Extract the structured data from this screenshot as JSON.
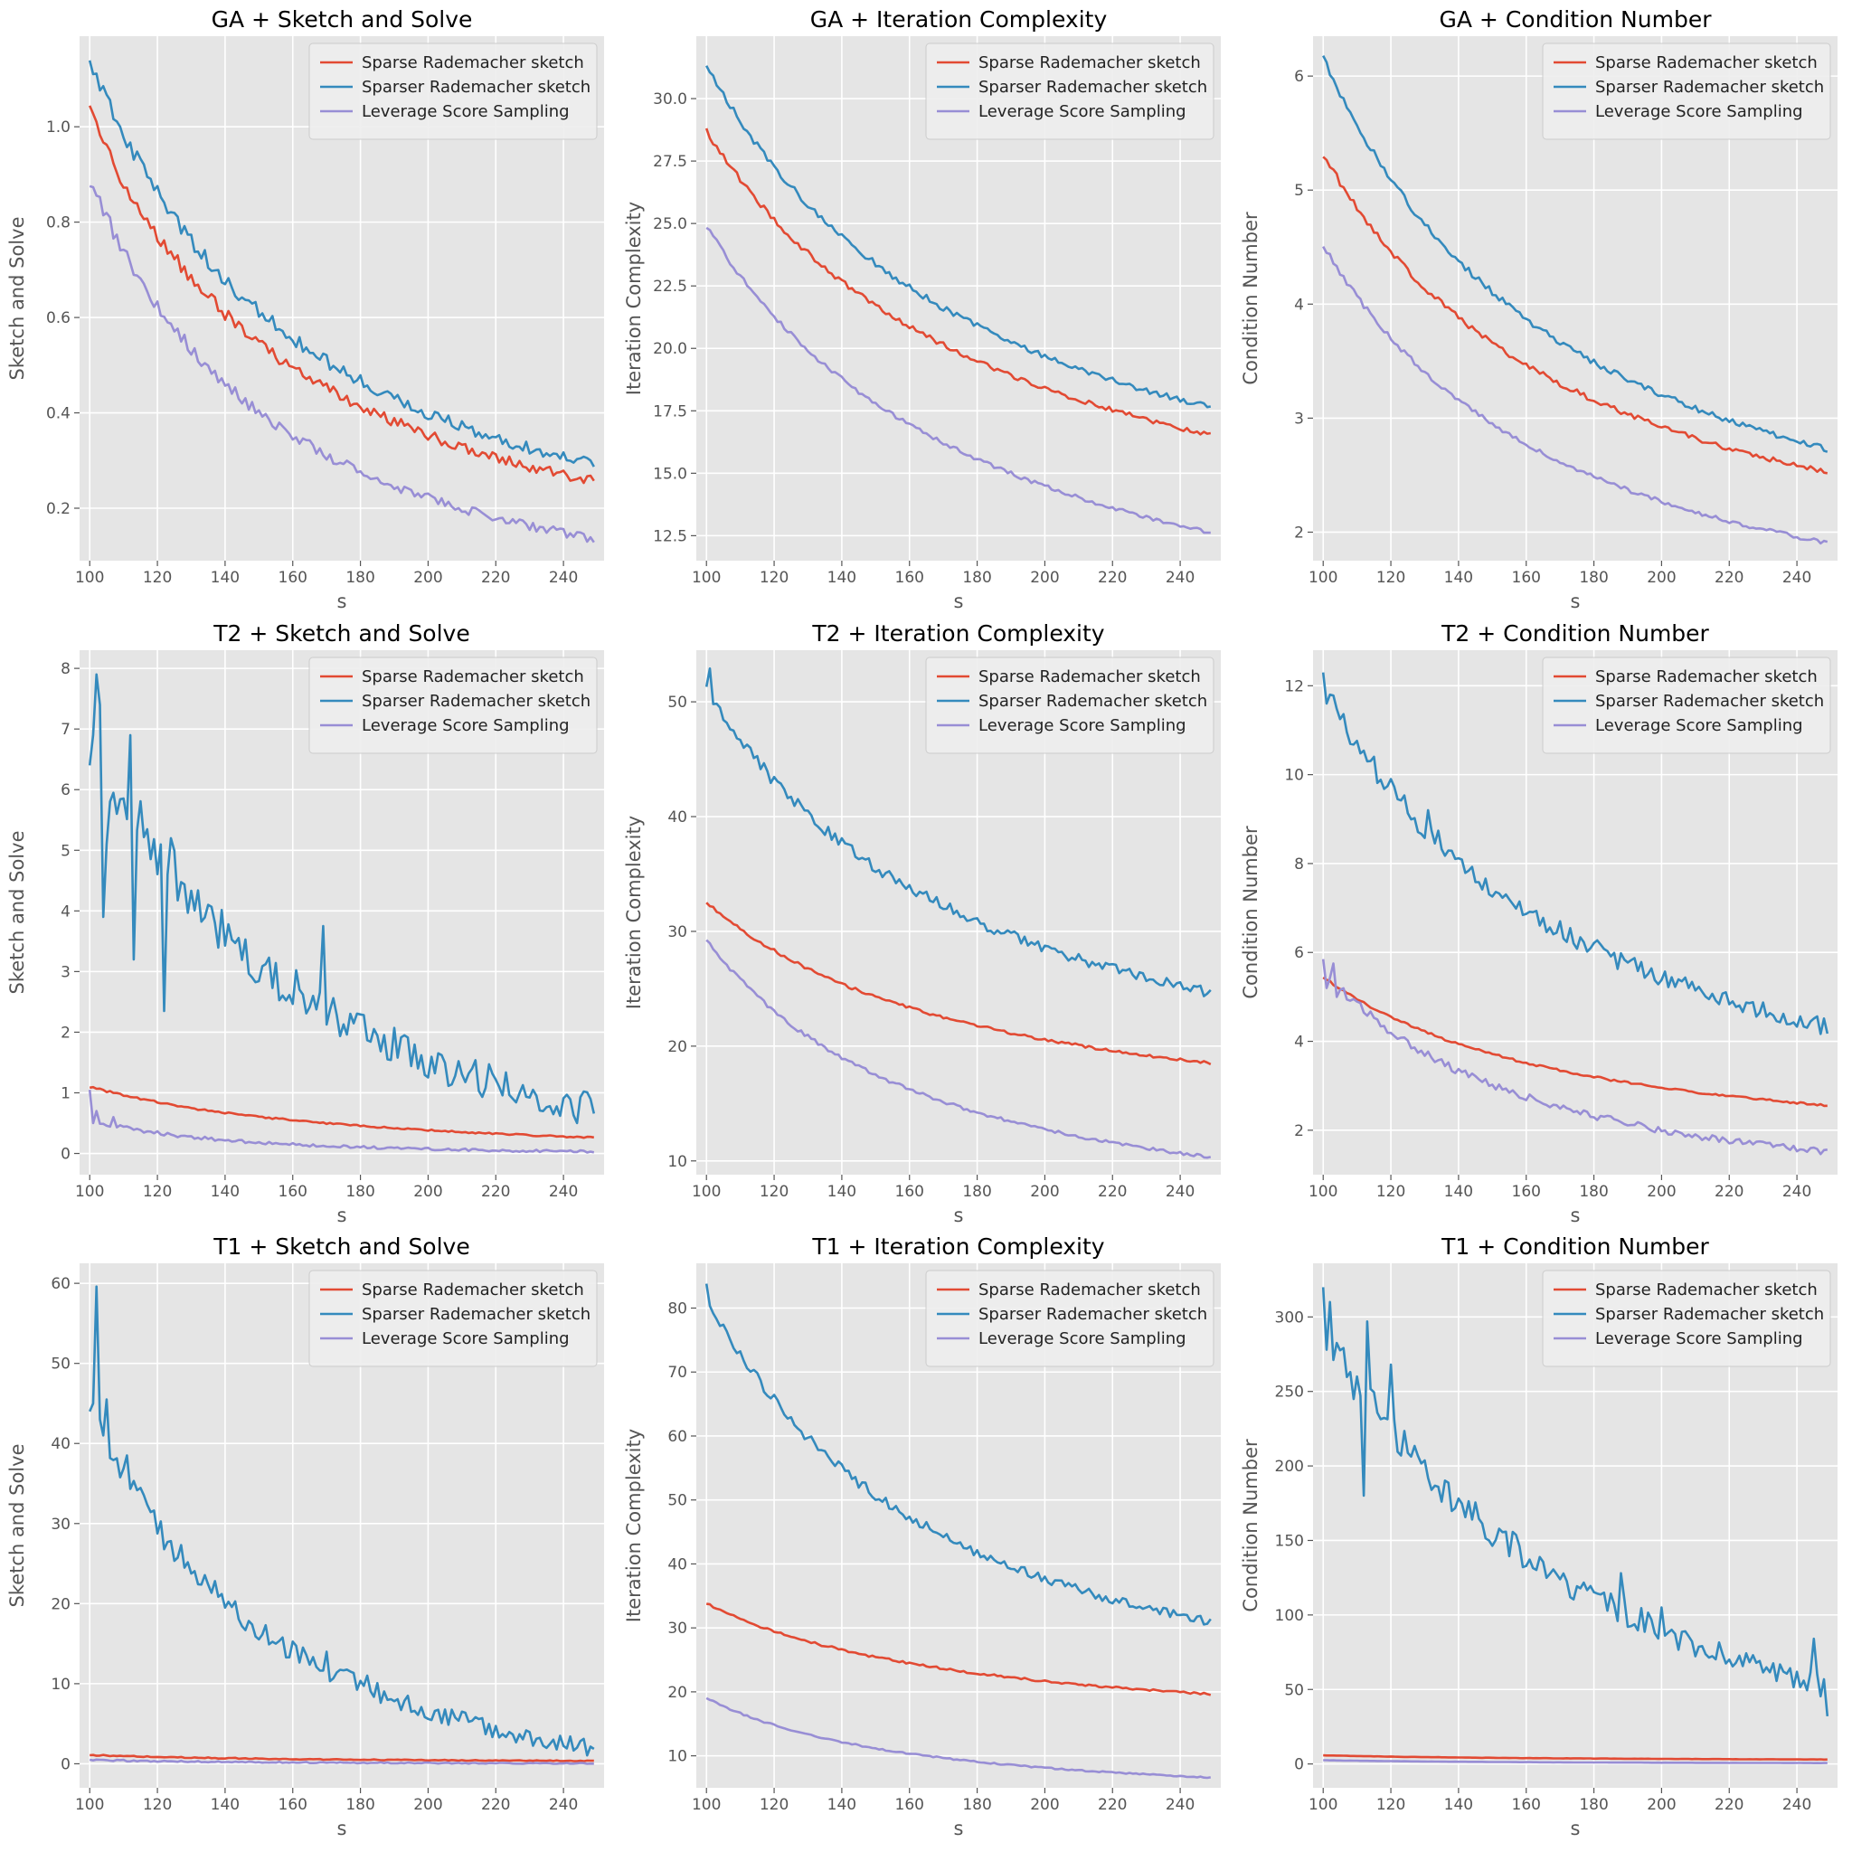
{
  "colors": {
    "sparse": "#E24A33",
    "sparser": "#348ABD",
    "leverage": "#988ED5",
    "panel_bg": "#E5E5E5",
    "grid": "#FFFFFF"
  },
  "legend_labels": [
    "Sparse Rademacher sketch",
    "Sparser Rademacher sketch",
    "Leverage Score Sampling"
  ],
  "chart_data": [
    {
      "type": "line",
      "title": "GA + Sketch and Solve",
      "xlabel": "s",
      "ylabel": "Sketch and Solve",
      "xlim": [
        97,
        252
      ],
      "ylim": [
        0.09,
        1.19
      ],
      "xticks": [
        100,
        120,
        140,
        160,
        180,
        200,
        220,
        240
      ],
      "yticks": [
        0.2,
        0.4,
        0.6,
        0.8,
        1.0
      ],
      "ytick_decimals": 1,
      "legend": "top-right",
      "grid": true,
      "x": [
        100,
        250
      ],
      "series": [
        {
          "name": "Sparse Rademacher sketch",
          "color_key": "sparse",
          "start": 1.03,
          "end": 0.255,
          "p": 1.63,
          "noise": 0.018,
          "spikes": []
        },
        {
          "name": "Sparser Rademacher sketch",
          "color_key": "sparser",
          "start": 1.14,
          "end": 0.29,
          "p": 1.6,
          "noise": 0.02,
          "spikes": []
        },
        {
          "name": "Leverage Score Sampling",
          "color_key": "leverage",
          "start": 0.89,
          "end": 0.135,
          "p": 1.85,
          "noise": 0.017,
          "spikes": []
        }
      ]
    },
    {
      "type": "line",
      "title": "GA + Iteration Complexity",
      "xlabel": "s",
      "ylabel": "Iteration Complexity",
      "xlim": [
        97,
        252
      ],
      "ylim": [
        11.5,
        32.5
      ],
      "xticks": [
        100,
        120,
        140,
        160,
        180,
        200,
        220,
        240
      ],
      "yticks": [
        12.5,
        15.0,
        17.5,
        20.0,
        22.5,
        25.0,
        27.5,
        30.0
      ],
      "ytick_decimals": 1,
      "legend": "top-right",
      "grid": true,
      "x": [
        100,
        250
      ],
      "series": [
        {
          "name": "Sparse Rademacher sketch",
          "color_key": "sparse",
          "start": 28.7,
          "end": 16.5,
          "p": 1.15,
          "noise": 0.12,
          "spikes": []
        },
        {
          "name": "Sparser Rademacher sketch",
          "color_key": "sparser",
          "start": 31.3,
          "end": 17.6,
          "p": 1.2,
          "noise": 0.15,
          "spikes": []
        },
        {
          "name": "Leverage Score Sampling",
          "color_key": "leverage",
          "start": 24.9,
          "end": 12.6,
          "p": 1.2,
          "noise": 0.1,
          "spikes": []
        }
      ]
    },
    {
      "type": "line",
      "title": "GA + Condition Number",
      "xlabel": "s",
      "ylabel": "Condition Number",
      "xlim": [
        97,
        252
      ],
      "ylim": [
        1.75,
        6.35
      ],
      "xticks": [
        100,
        120,
        140,
        160,
        180,
        200,
        220,
        240
      ],
      "yticks": [
        2,
        3,
        4,
        5,
        6
      ],
      "ytick_decimals": 0,
      "legend": "top-right",
      "grid": true,
      "x": [
        100,
        250
      ],
      "series": [
        {
          "name": "Sparse Rademacher sketch",
          "color_key": "sparse",
          "start": 5.32,
          "end": 2.52,
          "p": 1.35,
          "noise": 0.03,
          "spikes": []
        },
        {
          "name": "Sparser Rademacher sketch",
          "color_key": "sparser",
          "start": 6.17,
          "end": 2.72,
          "p": 1.4,
          "noise": 0.035,
          "spikes": []
        },
        {
          "name": "Leverage Score Sampling",
          "color_key": "leverage",
          "start": 4.52,
          "end": 1.9,
          "p": 1.4,
          "noise": 0.025,
          "spikes": []
        }
      ]
    },
    {
      "type": "line",
      "title": "T2 + Sketch and Solve",
      "xlabel": "s",
      "ylabel": "Sketch and Solve",
      "xlim": [
        97,
        252
      ],
      "ylim": [
        -0.35,
        8.3
      ],
      "xticks": [
        100,
        120,
        140,
        160,
        180,
        200,
        220,
        240
      ],
      "yticks": [
        0,
        1,
        2,
        3,
        4,
        5,
        6,
        7,
        8
      ],
      "ytick_decimals": 0,
      "legend": "top-right",
      "grid": true,
      "x": [
        100,
        250
      ],
      "series": [
        {
          "name": "Sparse Rademacher sketch",
          "color_key": "sparse",
          "start": 1.1,
          "end": 0.26,
          "p": 1.3,
          "noise": 0.02,
          "spikes": []
        },
        {
          "name": "Sparser Rademacher sketch",
          "color_key": "sparser",
          "start": 7.0,
          "end": 0.7,
          "p": 1.5,
          "noise": 0.55,
          "spikes": [
            [
              100,
              6.4
            ],
            [
              101,
              6.9
            ],
            [
              102,
              7.9
            ],
            [
              103,
              7.4
            ],
            [
              104,
              3.9
            ],
            [
              105,
              5.1
            ],
            [
              108,
              5.6
            ],
            [
              112,
              6.9
            ],
            [
              113,
              3.2
            ],
            [
              122,
              2.35
            ],
            [
              123,
              4.6
            ],
            [
              124,
              5.2
            ],
            [
              135,
              4.1
            ],
            [
              137,
              3.8
            ],
            [
              169,
              3.75
            ],
            [
              248,
              0.9
            ]
          ]
        },
        {
          "name": "Leverage Score Sampling",
          "color_key": "leverage",
          "start": 0.55,
          "end": 0.03,
          "p": 2.5,
          "noise": 0.04,
          "spikes": [
            [
              100,
              1.05
            ],
            [
              101,
              0.5
            ],
            [
              102,
              0.7
            ],
            [
              107,
              0.6
            ]
          ]
        }
      ]
    },
    {
      "type": "line",
      "title": "T2 + Iteration Complexity",
      "xlabel": "s",
      "ylabel": "Iteration Complexity",
      "xlim": [
        97,
        252
      ],
      "ylim": [
        8.8,
        54.5
      ],
      "xticks": [
        100,
        120,
        140,
        160,
        180,
        200,
        220,
        240
      ],
      "yticks": [
        10,
        20,
        30,
        40,
        50
      ],
      "ytick_decimals": 0,
      "legend": "top-right",
      "grid": true,
      "x": [
        100,
        250
      ],
      "series": [
        {
          "name": "Sparse Rademacher sketch",
          "color_key": "sparse",
          "start": 32.6,
          "end": 18.5,
          "p": 1.3,
          "noise": 0.15,
          "spikes": []
        },
        {
          "name": "Sparser Rademacher sketch",
          "color_key": "sparser",
          "start": 51.0,
          "end": 24.6,
          "p": 1.25,
          "noise": 0.6,
          "spikes": [
            [
              101,
              52.9
            ],
            [
              102,
              49.8
            ]
          ]
        },
        {
          "name": "Leverage Score Sampling",
          "color_key": "leverage",
          "start": 29.3,
          "end": 10.3,
          "p": 1.6,
          "noise": 0.2,
          "spikes": []
        }
      ]
    },
    {
      "type": "line",
      "title": "T2 + Condition Number",
      "xlabel": "s",
      "ylabel": "Condition Number",
      "xlim": [
        97,
        252
      ],
      "ylim": [
        1.0,
        12.8
      ],
      "xticks": [
        100,
        120,
        140,
        160,
        180,
        200,
        220,
        240
      ],
      "yticks": [
        2,
        4,
        6,
        8,
        10,
        12
      ],
      "ytick_decimals": 0,
      "legend": "top-right",
      "grid": true,
      "x": [
        100,
        250
      ],
      "series": [
        {
          "name": "Sparse Rademacher sketch",
          "color_key": "sparse",
          "start": 5.45,
          "end": 2.55,
          "p": 1.4,
          "noise": 0.03,
          "spikes": []
        },
        {
          "name": "Sparser Rademacher sketch",
          "color_key": "sparser",
          "start": 12.0,
          "end": 4.3,
          "p": 1.3,
          "noise": 0.3,
          "spikes": [
            [
              100,
              12.3
            ],
            [
              101,
              11.6
            ],
            [
              102,
              11.8
            ],
            [
              120,
              9.9
            ],
            [
              131,
              9.2
            ],
            [
              170,
              6.7
            ]
          ]
        },
        {
          "name": "Leverage Score Sampling",
          "color_key": "leverage",
          "start": 5.6,
          "end": 1.5,
          "p": 1.7,
          "noise": 0.12,
          "spikes": [
            [
              100,
              5.85
            ],
            [
              101,
              5.2
            ],
            [
              103,
              5.75
            ],
            [
              104,
              5.0
            ]
          ]
        }
      ]
    },
    {
      "type": "line",
      "title": "T1 + Sketch and Solve",
      "xlabel": "s",
      "ylabel": "Sketch and Solve",
      "xlim": [
        97,
        252
      ],
      "ylim": [
        -3.0,
        62.5
      ],
      "xticks": [
        100,
        120,
        140,
        160,
        180,
        200,
        220,
        240
      ],
      "yticks": [
        0,
        10,
        20,
        30,
        40,
        50,
        60
      ],
      "ytick_decimals": 0,
      "legend": "top-right",
      "grid": true,
      "x": [
        100,
        250
      ],
      "series": [
        {
          "name": "Sparse Rademacher sketch",
          "color_key": "sparse",
          "start": 1.1,
          "end": 0.35,
          "p": 1.5,
          "noise": 0.08,
          "spikes": []
        },
        {
          "name": "Sparser Rademacher sketch",
          "color_key": "sparser",
          "start": 45.0,
          "end": 1.8,
          "p": 1.9,
          "noise": 2.2,
          "spikes": [
            [
              100,
              44.0
            ],
            [
              101,
              45.0
            ],
            [
              102,
              59.6
            ],
            [
              103,
              43.0
            ],
            [
              104,
              41.0
            ],
            [
              105,
              45.5
            ],
            [
              111,
              38.5
            ],
            [
              170,
              14.0
            ],
            [
              182,
              11.0
            ]
          ]
        },
        {
          "name": "Leverage Score Sampling",
          "color_key": "leverage",
          "start": 0.5,
          "end": 0.04,
          "p": 2.0,
          "noise": 0.12,
          "spikes": []
        }
      ]
    },
    {
      "type": "line",
      "title": "T1 + Iteration Complexity",
      "xlabel": "s",
      "ylabel": "Iteration Complexity",
      "xlim": [
        97,
        252
      ],
      "ylim": [
        5.0,
        87.0
      ],
      "xticks": [
        100,
        120,
        140,
        160,
        180,
        200,
        220,
        240
      ],
      "yticks": [
        10,
        20,
        30,
        40,
        50,
        60,
        70,
        80
      ],
      "ytick_decimals": 0,
      "legend": "top-right",
      "grid": true,
      "x": [
        100,
        250
      ],
      "series": [
        {
          "name": "Sparse Rademacher sketch",
          "color_key": "sparse",
          "start": 33.8,
          "end": 19.6,
          "p": 1.3,
          "noise": 0.2,
          "spikes": []
        },
        {
          "name": "Sparser Rademacher sketch",
          "color_key": "sparser",
          "start": 82.0,
          "end": 30.8,
          "p": 1.5,
          "noise": 1.0,
          "spikes": [
            [
              100,
              83.8
            ]
          ]
        },
        {
          "name": "Leverage Score Sampling",
          "color_key": "leverage",
          "start": 19.0,
          "end": 6.6,
          "p": 1.7,
          "noise": 0.15,
          "spikes": []
        }
      ]
    },
    {
      "type": "line",
      "title": "T1 + Condition Number",
      "xlabel": "s",
      "ylabel": "Condition Number",
      "xlim": [
        97,
        252
      ],
      "ylim": [
        -16,
        336
      ],
      "xticks": [
        100,
        120,
        140,
        160,
        180,
        200,
        220,
        240
      ],
      "yticks": [
        0,
        50,
        100,
        150,
        200,
        250,
        300
      ],
      "ytick_decimals": 0,
      "legend": "top-right",
      "grid": true,
      "x": [
        100,
        250
      ],
      "series": [
        {
          "name": "Sparse Rademacher sketch",
          "color_key": "sparse",
          "start": 5.8,
          "end": 3.0,
          "p": 1.4,
          "noise": 0.1,
          "spikes": []
        },
        {
          "name": "Sparser Rademacher sketch",
          "color_key": "sparser",
          "start": 290.0,
          "end": 50.0,
          "p": 1.0,
          "noise": 14.0,
          "spikes": [
            [
              100,
              320
            ],
            [
              101,
              278
            ],
            [
              102,
              310
            ],
            [
              112,
              180
            ],
            [
              113,
              297
            ],
            [
              120,
              268
            ],
            [
              188,
              128
            ],
            [
              200,
              105
            ],
            [
              245,
              84
            ],
            [
              249,
              32
            ]
          ]
        },
        {
          "name": "Leverage Score Sampling",
          "color_key": "leverage",
          "start": 2.5,
          "end": 0.6,
          "p": 1.6,
          "noise": 0.05,
          "spikes": []
        }
      ]
    }
  ]
}
